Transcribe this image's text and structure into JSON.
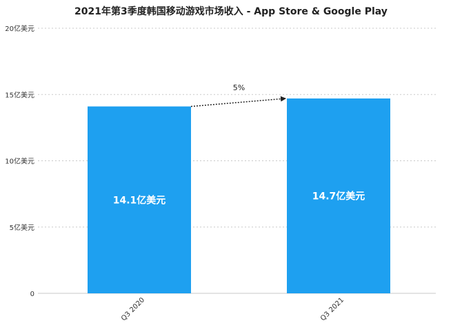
{
  "chart_data": {
    "type": "bar",
    "title": "2021年第3季度韩国移动游戏市场收入 - App Store & Google Play",
    "categories": [
      "Q3 2020",
      "Q3 2021"
    ],
    "values": [
      14.1,
      14.7
    ],
    "value_labels": [
      "14.1亿美元",
      "14.7亿美元"
    ],
    "unit": "亿美元",
    "ylim": [
      0,
      20
    ],
    "yticks": [
      0,
      5,
      10,
      15,
      20
    ],
    "ytick_labels": [
      "0",
      "5亿美元",
      "10亿美元",
      "15亿美元",
      "20亿美元"
    ],
    "annotation": "5%",
    "grid": true,
    "legend": "none",
    "colors": {
      "bar": "#1ea0f0",
      "grid": "#c8c8c8"
    }
  }
}
